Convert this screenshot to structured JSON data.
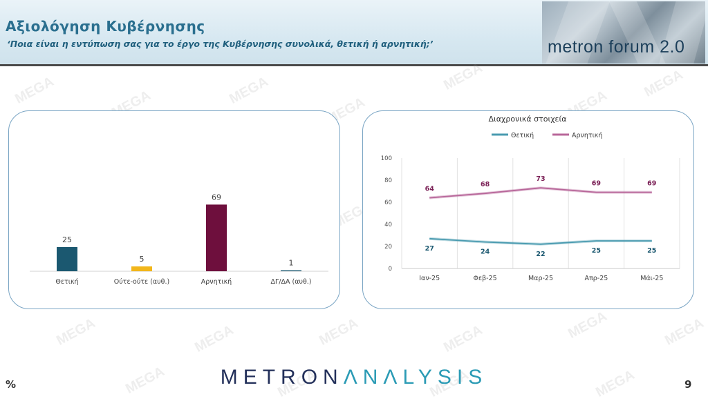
{
  "header": {
    "title": "Αξιολόγηση Κυβέρνησης",
    "subtitle": "‘Ποια είναι η εντύπωση σας για το έργο της Κυβέρνησης συνολικά, θετική ή αρνητική;’",
    "forum_label": "metron forum 2.0"
  },
  "watermark_text": "MEGA",
  "footer": {
    "brand_part1": "METRON",
    "brand_part2": "ΛNΛLYSIS",
    "percent_sign": "%",
    "page_number": "9"
  },
  "chart_data": [
    {
      "type": "bar",
      "categories": [
        "Θετική",
        "Ούτε-ούτε (αυθ.)",
        "Αρνητική",
        "ΔΓ/ΔΑ (αυθ.)"
      ],
      "values": [
        25,
        5,
        69,
        1
      ],
      "colors": [
        "#1b5870",
        "#f2b61a",
        "#6e0f3d",
        "#1b5870"
      ],
      "data_labels": true
    },
    {
      "type": "line",
      "title": "Διαχρονικά στοιχεία",
      "x": [
        "Ιαν-25",
        "Φεβ-25",
        "Μαρ-25",
        "Απρ-25",
        "Μάι-25"
      ],
      "series": [
        {
          "name": "Θετική",
          "values": [
            27,
            24,
            22,
            25,
            25
          ],
          "color": "#4a9bb0"
        },
        {
          "name": "Αρνητική",
          "values": [
            64,
            68,
            73,
            69,
            69
          ],
          "color": "#b8679a"
        }
      ],
      "ylim": [
        0,
        100
      ],
      "yticks": [
        0,
        20,
        40,
        60,
        80,
        100
      ],
      "legend": "top",
      "grid": "vertical"
    }
  ]
}
